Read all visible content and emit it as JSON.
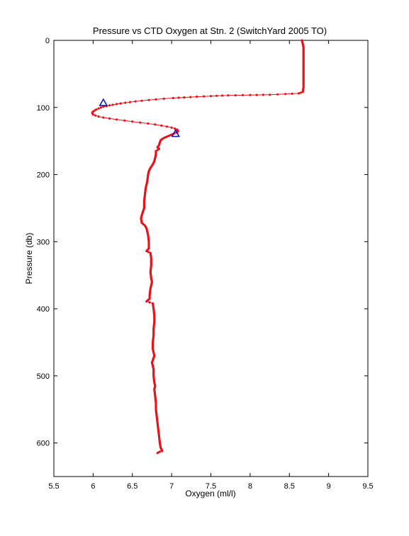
{
  "chart_data": {
    "type": "line",
    "title": "Pressure vs CTD Oxygen at Stn. 2 (SwitchYard 2005 TO)",
    "xlabel": "Oxygen (ml/l)",
    "ylabel": "Pressure (db)",
    "xlim": [
      5.5,
      9.5
    ],
    "ylim": [
      0,
      650
    ],
    "y_inverted": true,
    "x_ticks": [
      "5.5",
      "6",
      "6.5",
      "7",
      "7.5",
      "8",
      "8.5",
      "9",
      "9.5"
    ],
    "y_ticks": [
      "0",
      "100",
      "200",
      "300",
      "400",
      "500",
      "600"
    ],
    "grid": false,
    "legend": "none",
    "series": [
      {
        "color": "#e8121b",
        "marker": "dot",
        "points": [
          [
            8.66,
            0
          ],
          [
            8.67,
            5
          ],
          [
            8.68,
            10
          ],
          [
            8.68,
            20
          ],
          [
            8.68,
            30
          ],
          [
            8.68,
            40
          ],
          [
            8.68,
            50
          ],
          [
            8.68,
            60
          ],
          [
            8.68,
            70
          ],
          [
            8.67,
            77
          ],
          [
            8.62,
            79
          ],
          [
            8.45,
            80
          ],
          [
            8.25,
            81
          ],
          [
            8.0,
            81.5
          ],
          [
            7.72,
            82
          ],
          [
            7.5,
            83
          ],
          [
            7.32,
            84
          ],
          [
            7.16,
            85
          ],
          [
            7.02,
            86
          ],
          [
            6.9,
            87
          ],
          [
            6.8,
            88
          ],
          [
            6.71,
            89
          ],
          [
            6.62,
            90
          ],
          [
            6.54,
            91
          ],
          [
            6.47,
            92
          ],
          [
            6.41,
            93
          ],
          [
            6.35,
            94
          ],
          [
            6.3,
            95
          ],
          [
            6.25,
            96
          ],
          [
            6.21,
            97
          ],
          [
            6.17,
            98
          ],
          [
            6.13,
            99
          ],
          [
            6.1,
            100
          ],
          [
            6.07,
            101.5
          ],
          [
            6.04,
            103
          ],
          [
            6.02,
            104.5
          ],
          [
            6.0,
            106
          ],
          [
            5.99,
            107.5
          ],
          [
            5.99,
            109
          ],
          [
            6.0,
            110.5
          ],
          [
            6.03,
            112
          ],
          [
            6.07,
            113.5
          ],
          [
            6.13,
            115
          ],
          [
            6.21,
            116.5
          ],
          [
            6.3,
            118
          ],
          [
            6.4,
            119.5
          ],
          [
            6.5,
            121
          ],
          [
            6.6,
            122.5
          ],
          [
            6.7,
            124
          ],
          [
            6.79,
            125.5
          ],
          [
            6.87,
            127
          ],
          [
            6.94,
            128.5
          ],
          [
            7.0,
            130
          ],
          [
            7.04,
            131.5
          ],
          [
            7.07,
            133
          ],
          [
            7.08,
            134.5
          ],
          [
            7.08,
            136
          ],
          [
            7.06,
            137.5
          ],
          [
            7.03,
            139
          ],
          [
            6.99,
            141
          ],
          [
            6.95,
            143
          ],
          [
            6.91,
            145
          ],
          [
            6.88,
            147
          ],
          [
            6.86,
            149
          ],
          [
            6.85,
            152
          ],
          [
            6.84,
            156
          ],
          [
            6.82,
            159
          ],
          [
            6.84,
            162
          ],
          [
            6.8,
            165
          ],
          [
            6.8,
            170
          ],
          [
            6.79,
            175
          ],
          [
            6.78,
            180
          ],
          [
            6.76,
            185
          ],
          [
            6.73,
            190
          ],
          [
            6.71,
            195
          ],
          [
            6.7,
            200
          ],
          [
            6.69,
            210
          ],
          [
            6.67,
            220
          ],
          [
            6.66,
            230
          ],
          [
            6.65,
            240
          ],
          [
            6.65,
            250
          ],
          [
            6.63,
            257
          ],
          [
            6.61,
            265
          ],
          [
            6.62,
            272
          ],
          [
            6.66,
            276
          ],
          [
            6.68,
            280
          ],
          [
            6.7,
            290
          ],
          [
            6.71,
            300
          ],
          [
            6.71,
            310
          ],
          [
            6.68,
            314
          ],
          [
            6.73,
            317
          ],
          [
            6.74,
            325
          ],
          [
            6.74,
            335
          ],
          [
            6.73,
            345
          ],
          [
            6.74,
            355
          ],
          [
            6.75,
            360
          ],
          [
            6.73,
            370
          ],
          [
            6.72,
            380
          ],
          [
            6.72,
            385
          ],
          [
            6.68,
            389
          ],
          [
            6.76,
            392
          ],
          [
            6.77,
            400
          ],
          [
            6.78,
            410
          ],
          [
            6.78,
            420
          ],
          [
            6.77,
            430
          ],
          [
            6.77,
            440
          ],
          [
            6.76,
            450
          ],
          [
            6.76,
            460
          ],
          [
            6.78,
            470
          ],
          [
            6.75,
            480
          ],
          [
            6.77,
            490
          ],
          [
            6.77,
            500
          ],
          [
            6.78,
            510
          ],
          [
            6.79,
            515
          ],
          [
            6.78,
            520
          ],
          [
            6.79,
            530
          ],
          [
            6.8,
            540
          ],
          [
            6.8,
            550
          ],
          [
            6.81,
            560
          ],
          [
            6.82,
            570
          ],
          [
            6.83,
            580
          ],
          [
            6.84,
            590
          ],
          [
            6.85,
            600
          ],
          [
            6.86,
            607
          ],
          [
            6.88,
            612
          ],
          [
            6.85,
            613
          ],
          [
            6.82,
            615
          ]
        ]
      }
    ],
    "markers": [
      {
        "shape": "triangle",
        "color": "#1a1aa8",
        "x": 6.13,
        "y": 93
      },
      {
        "shape": "triangle",
        "color": "#1a1aa8",
        "x": 7.05,
        "y": 139
      }
    ]
  }
}
